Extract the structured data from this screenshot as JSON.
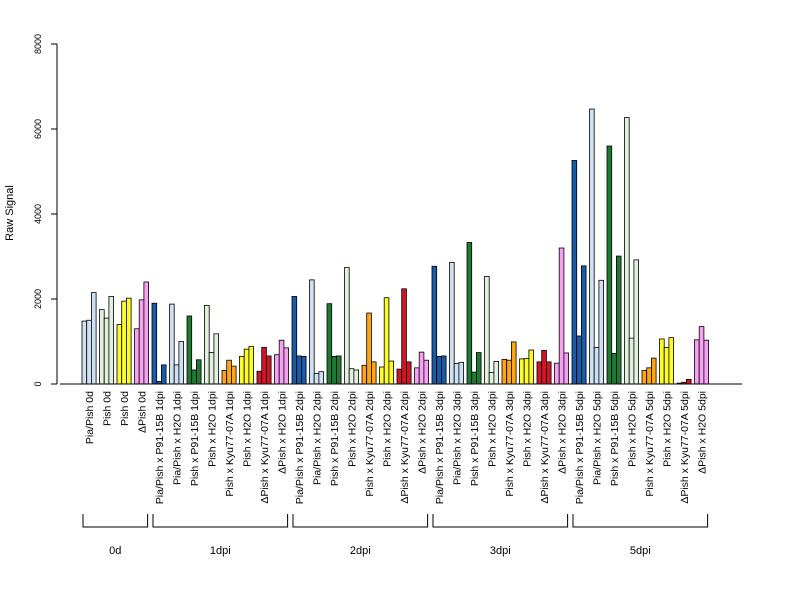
{
  "chart_data": {
    "type": "bar",
    "ylabel": "Raw Signal",
    "ylim": [
      0,
      8000
    ],
    "yticks": [
      0,
      2000,
      4000,
      6000,
      8000
    ],
    "colors": {
      "Pia/Pish": "#cfe0f3",
      "Pish": "#e2f0de",
      "Pish_yellow": "#fcfc2a",
      "ΔPish": "#f7a1f3",
      "Pia/Pish x P91-15B": "#1a5ba8",
      "Pia/Pish x H2O": "#cfe0f3",
      "Pish x P91-15B": "#1e7a32",
      "Pish x H2O": "#e2f0de",
      "Pish x Kyu77-07A": "#ffa514",
      "Pish x H2O (yellow)": "#fcfc2a",
      "ΔPish x Kyu77-07A": "#d21526",
      "ΔPish x H2O": "#f7a1f3"
    },
    "groups": [
      {
        "label": "0d",
        "categories": [
          {
            "label": "Pia/Pish 0d",
            "color": "#cfe0f3",
            "values": [
              1480,
              1500,
              2150
            ]
          },
          {
            "label": "Pish 0d",
            "color": "#e2f0de",
            "values": [
              1750,
              1550,
              2060
            ]
          },
          {
            "label": "Pish 0d",
            "color": "#fcfc2a",
            "values": [
              1400,
              1950,
              2020
            ]
          },
          {
            "label": "ΔPish 0d",
            "color": "#f7a1f3",
            "values": [
              1300,
              1980,
              2400
            ]
          }
        ]
      },
      {
        "label": "1dpi",
        "categories": [
          {
            "label": "Pia/Pish x P91-15B 1dpi",
            "color": "#1a5ba8",
            "values": [
              1900,
              60,
              450
            ]
          },
          {
            "label": "Pia/Pish x H2O 1dpi",
            "color": "#cfe0f3",
            "values": [
              1880,
              450,
              1000
            ]
          },
          {
            "label": "Pish x P91-15B 1dpi",
            "color": "#1e7a32",
            "values": [
              1600,
              330,
              570
            ]
          },
          {
            "label": "Pish x H2O 1dpi",
            "color": "#e2f0de",
            "values": [
              1850,
              740,
              1180
            ]
          },
          {
            "label": "Pish x Kyu77-07A 1dpi",
            "color": "#ffa514",
            "values": [
              320,
              560,
              420
            ]
          },
          {
            "label": "Pish x H2O 1dpi",
            "color": "#fcfc2a",
            "values": [
              650,
              820,
              880
            ]
          },
          {
            "label": "ΔPish x Kyu77-07A 1dpi",
            "color": "#d21526",
            "values": [
              300,
              860,
              660
            ]
          },
          {
            "label": "ΔPish x H2O 1dpi",
            "color": "#f7a1f3",
            "values": [
              690,
              1030,
              850
            ]
          }
        ]
      },
      {
        "label": "2dpi",
        "categories": [
          {
            "label": "Pia/Pish x P91-15B 2dpi",
            "color": "#1a5ba8",
            "values": [
              2060,
              660,
              650
            ]
          },
          {
            "label": "Pia/Pish x H2O 2dpi",
            "color": "#cfe0f3",
            "values": [
              2450,
              250,
              290
            ]
          },
          {
            "label": "Pish x P91-15B 2dpi",
            "color": "#1e7a32",
            "values": [
              1890,
              650,
              660
            ]
          },
          {
            "label": "Pish x H2O 2dpi",
            "color": "#e2f0de",
            "values": [
              2740,
              360,
              330
            ]
          },
          {
            "label": "Pish x Kyu77-07A 2dpi",
            "color": "#ffa514",
            "values": [
              440,
              1670,
              520
            ]
          },
          {
            "label": "Pish x H2O 2dpi",
            "color": "#fcfc2a",
            "values": [
              400,
              2030,
              540
            ]
          },
          {
            "label": "ΔPish x Kyu77-07A 2dpi",
            "color": "#d21526",
            "values": [
              350,
              2240,
              520
            ]
          },
          {
            "label": "ΔPish x H2O 2dpi",
            "color": "#f7a1f3",
            "values": [
              380,
              750,
              560
            ]
          }
        ]
      },
      {
        "label": "3dpi",
        "categories": [
          {
            "label": "Pia/Pish x P91-15B 3dpi",
            "color": "#1a5ba8",
            "values": [
              2770,
              650,
              660
            ]
          },
          {
            "label": "Pia/Pish x H2O 3dpi",
            "color": "#cfe0f3",
            "values": [
              2860,
              480,
              510
            ]
          },
          {
            "label": "Pish x P91-15B 3dpi",
            "color": "#1e7a32",
            "values": [
              3330,
              280,
              740
            ]
          },
          {
            "label": "Pish x H2O 3dpi",
            "color": "#e2f0de",
            "values": [
              2530,
              270,
              530
            ]
          },
          {
            "label": "Pish x Kyu77-07A 3dpi",
            "color": "#ffa514",
            "values": [
              580,
              560,
              990
            ]
          },
          {
            "label": "Pish x H2O 3dpi",
            "color": "#fcfc2a",
            "values": [
              590,
              600,
              800
            ]
          },
          {
            "label": "ΔPish x Kyu77-07A 3dpi",
            "color": "#d21526",
            "values": [
              520,
              790,
              520
            ]
          },
          {
            "label": "ΔPish x H2O 3dpi",
            "color": "#f7a1f3",
            "values": [
              490,
              3200,
              730
            ]
          }
        ]
      },
      {
        "label": "5dpi",
        "categories": [
          {
            "label": "Pia/Pish x P91-15B 5dpi",
            "color": "#1a5ba8",
            "values": [
              5260,
              1130,
              2780
            ]
          },
          {
            "label": "Pia/Pish x H2O 5dpi",
            "color": "#cfe0f3",
            "values": [
              6470,
              860,
              2440
            ]
          },
          {
            "label": "Pish x P91-15B 5dpi",
            "color": "#1e7a32",
            "values": [
              5600,
              720,
              3010
            ]
          },
          {
            "label": "Pish x H2O 5dpi",
            "color": "#e2f0de",
            "values": [
              6270,
              1080,
              2920
            ]
          },
          {
            "label": "Pish x Kyu77-07A 5dpi",
            "color": "#ffa514",
            "values": [
              320,
              380,
              610
            ]
          },
          {
            "label": "Pish x H2O 5dpi",
            "color": "#fcfc2a",
            "values": [
              1060,
              860,
              1090
            ]
          },
          {
            "label": "ΔPish x Kyu77-07A 5dpi",
            "color": "#d21526",
            "values": [
              20,
              40,
              110
            ]
          },
          {
            "label": "ΔPish x H2O 5dpi",
            "color": "#f7a1f3",
            "values": [
              1040,
              1350,
              1030
            ]
          }
        ]
      }
    ]
  }
}
